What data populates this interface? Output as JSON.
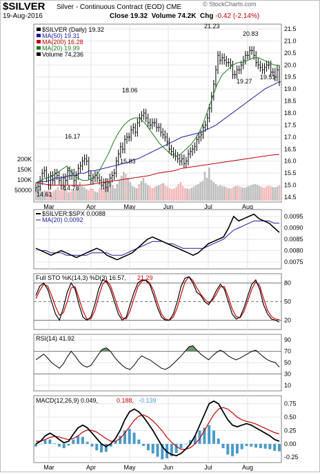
{
  "header": {
    "symbol": "$SILVER",
    "description": "Silver - Continuous Contract (EOD)",
    "exchange": "CME",
    "date": "19-Aug-2016",
    "close_label": "Close",
    "close": "19.32",
    "volume_label": "Volume",
    "volume": "74.2K",
    "chg_label": "Chg",
    "chg": "-0.42 (-2.14%)",
    "watermark": "© StockCharts.com"
  },
  "colors": {
    "up": "#000000",
    "ma50": "#1a1a9c",
    "ma200": "#c00000",
    "ma20": "#1a7a1a",
    "vol_up": "#bdbdbd",
    "vol_down": "#f2b8b8",
    "sto_k": "#000000",
    "sto_d": "#d00000",
    "rsi_fill": "#4a7a4a",
    "macd_hist": "#4a9ac9"
  },
  "chart_data": [
    {
      "type": "candlestick",
      "panel": "price",
      "legend": [
        {
          "label": "$SILVER (Daily) 19.32"
        },
        {
          "label": "MA(50) 19.31"
        },
        {
          "label": "MA(200) 16.28"
        },
        {
          "label": "MA(20) 19.99"
        },
        {
          "label": "Volume 74,236"
        }
      ],
      "x_ticks": [
        "Mar",
        "Apr",
        "May",
        "Jun",
        "Jul",
        "Aug"
      ],
      "y_ticks": [
        14.5,
        15.0,
        15.5,
        16.0,
        16.5,
        17.0,
        17.5,
        18.0,
        18.5,
        19.0,
        19.5,
        20.0,
        20.5,
        21.0,
        21.5
      ],
      "ylim": [
        14.3,
        21.7
      ],
      "volume_ticks": [
        "200K",
        "150K",
        "100K",
        "50000"
      ],
      "annotations": [
        "14.61",
        "16.17",
        "14.78",
        "18.06",
        "15.83",
        "21.23",
        "20.83",
        "19.27",
        "19.51"
      ],
      "price_closes": [
        14.9,
        14.95,
        15.2,
        15.5,
        15.6,
        15.3,
        15.0,
        15.4,
        15.2,
        15.5,
        15.4,
        15.2,
        15.0,
        15.3,
        15.2,
        15.6,
        15.4,
        15.5,
        15.2,
        15.4,
        15.7,
        15.8,
        16.0,
        16.1,
        16.0,
        15.4,
        15.2,
        15.3,
        15.4,
        15.3,
        15.2,
        15.0,
        15.1,
        14.9,
        15.1,
        15.3,
        15.4,
        15.5,
        16.0,
        16.3,
        16.6,
        16.5,
        16.9,
        17.0,
        17.0,
        17.3,
        17.4,
        17.2,
        17.6,
        17.8,
        17.9,
        18.0,
        17.8,
        17.6,
        17.5,
        17.6,
        17.6,
        17.4,
        17.4,
        17.2,
        17.1,
        17.0,
        16.8,
        16.5,
        16.4,
        16.3,
        16.2,
        16.1,
        16.0,
        16.1,
        15.9,
        16.0,
        16.3,
        16.4,
        16.5,
        16.6,
        16.9,
        17.0,
        17.1,
        17.4,
        17.5,
        17.8,
        18.2,
        18.7,
        19.2,
        19.8,
        20.4,
        20.2,
        20.3,
        20.2,
        20.1,
        20.1,
        20.0,
        19.6,
        19.6,
        19.8,
        19.8,
        20.0,
        20.2,
        20.4,
        20.4,
        20.6,
        20.6,
        20.4,
        20.1,
        20.0,
        19.9,
        19.8,
        19.9,
        20.0,
        20.0,
        19.7,
        19.7,
        19.5,
        19.8,
        19.3
      ],
      "ma50": [
        15.1,
        15.15,
        15.15,
        15.2,
        15.3,
        15.3,
        15.35,
        15.4,
        15.4,
        15.5,
        15.5,
        15.6,
        15.6,
        15.65,
        15.7,
        15.75,
        15.8,
        15.85,
        15.9,
        15.95,
        16.05,
        16.1,
        16.2,
        16.3,
        16.4,
        16.5,
        16.6,
        16.7,
        16.8,
        16.9,
        17.0,
        17.05,
        17.1,
        17.15,
        17.2,
        17.3,
        17.4,
        17.5,
        17.65,
        17.8,
        17.95,
        18.1,
        18.25,
        18.4,
        18.55,
        18.7,
        18.85,
        19.0,
        19.1,
        19.2,
        19.3
      ],
      "ma200": [
        15.1,
        15.05,
        15.0,
        15.0,
        15.0,
        15.0,
        15.0,
        15.05,
        15.1,
        15.15,
        15.2,
        15.25,
        15.3,
        15.35,
        15.4,
        15.5,
        15.55,
        15.6,
        15.7,
        15.75,
        15.8,
        15.85,
        15.9,
        15.95,
        16.0,
        16.05,
        16.1,
        16.15,
        16.2,
        16.25,
        16.28
      ],
      "ma20": [
        15.1,
        15.2,
        15.3,
        15.35,
        15.5,
        15.65,
        15.8,
        15.5,
        15.3,
        15.2,
        15.2,
        15.3,
        15.5,
        15.9,
        16.3,
        16.8,
        17.2,
        17.5,
        17.7,
        17.8,
        17.8,
        17.6,
        17.3,
        17.0,
        16.7,
        16.5,
        16.3,
        16.2,
        16.3,
        16.5,
        16.7,
        17.0,
        17.4,
        18.0,
        18.6,
        19.2,
        19.6,
        19.8,
        20.0,
        20.1,
        20.1,
        20.2,
        20.3,
        20.3,
        20.2,
        20.1,
        20.0,
        19.99
      ],
      "volume_K": [
        62,
        55,
        70,
        45,
        50,
        48,
        60,
        40,
        46,
        52,
        66,
        50,
        58,
        75,
        48,
        40,
        45,
        55,
        50,
        60,
        90,
        70,
        65,
        55,
        50,
        60,
        58,
        45,
        40,
        60,
        55,
        65,
        110,
        70,
        90,
        75,
        60,
        80,
        100,
        120,
        140,
        130,
        110,
        90,
        70,
        65,
        60,
        80,
        95,
        110,
        85,
        75,
        70,
        60,
        65,
        70,
        75,
        80,
        85,
        72,
        68,
        60,
        55,
        58,
        66,
        80,
        90,
        70,
        60,
        58,
        56,
        62,
        68,
        74,
        80,
        90,
        95,
        140,
        110,
        160,
        100,
        90,
        80,
        70,
        75,
        70,
        68,
        64,
        60,
        58,
        66,
        70,
        72,
        68,
        64,
        62,
        66,
        70,
        74,
        78,
        80,
        76,
        70,
        66,
        62,
        68,
        72,
        70,
        66,
        64,
        68,
        74
      ]
    },
    {
      "type": "line",
      "panel": "ratio",
      "legend": [
        {
          "label": "$SILVER:$SPX 0.0088"
        },
        {
          "label": "MA(20) 0.0092"
        }
      ],
      "y_ticks": [
        0.0075,
        0.008,
        0.0085,
        0.009,
        0.0095
      ],
      "ylim": [
        0.0072,
        0.0098
      ],
      "series": [
        {
          "values": [
            0.0081,
            0.008,
            0.0079,
            0.0078,
            0.0079,
            0.008,
            0.0079,
            0.0078,
            0.0077,
            0.0078,
            0.0079,
            0.008,
            0.0081,
            0.008,
            0.0078,
            0.0077,
            0.0076,
            0.0077,
            0.0078,
            0.0079,
            0.0081,
            0.0083,
            0.0085,
            0.0086,
            0.0085,
            0.0084,
            0.0083,
            0.0082,
            0.0081,
            0.008,
            0.0079,
            0.0078,
            0.0079,
            0.0081,
            0.0083,
            0.0084,
            0.0085,
            0.0086,
            0.009,
            0.0095,
            0.0093,
            0.0094,
            0.0095,
            0.0096,
            0.0094,
            0.0093,
            0.0092,
            0.009,
            0.0088
          ]
        },
        {
          "values": [
            0.0081,
            0.008,
            0.008,
            0.0079,
            0.0079,
            0.0079,
            0.0078,
            0.0078,
            0.0078,
            0.0078,
            0.0078,
            0.0079,
            0.0079,
            0.0079,
            0.0079,
            0.0078,
            0.0078,
            0.0078,
            0.0079,
            0.008,
            0.0081,
            0.0082,
            0.0083,
            0.0084,
            0.0084,
            0.0084,
            0.0083,
            0.0083,
            0.0082,
            0.0081,
            0.0081,
            0.0081,
            0.0081,
            0.0081,
            0.0082,
            0.0083,
            0.0084,
            0.0085,
            0.0087,
            0.0089,
            0.009,
            0.0091,
            0.0092,
            0.0093,
            0.0093,
            0.0093,
            0.0093,
            0.0092,
            0.0092
          ]
        }
      ]
    },
    {
      "type": "line",
      "panel": "stochastic",
      "legend": [
        {
          "label": "Full STO %K(14,3) %D(3) 16.57,"
        },
        {
          "label": "21.29"
        }
      ],
      "y_ticks": [
        20,
        50,
        80
      ],
      "ylim": [
        5,
        95
      ],
      "series": [
        {
          "values": [
            60,
            75,
            80,
            70,
            50,
            30,
            20,
            40,
            65,
            80,
            70,
            45,
            25,
            20,
            25,
            45,
            70,
            85,
            82,
            70,
            50,
            30,
            20,
            25,
            45,
            65,
            80,
            85,
            84,
            78,
            60,
            40,
            25,
            20,
            20,
            30,
            50,
            75,
            88,
            90,
            80,
            65,
            60,
            50,
            45,
            55,
            68,
            78,
            70,
            50,
            30,
            22,
            25,
            40,
            60,
            78,
            85,
            70,
            45,
            30,
            22,
            20,
            17
          ]
        },
        {
          "values": [
            55,
            68,
            78,
            75,
            60,
            42,
            28,
            32,
            50,
            72,
            74,
            55,
            35,
            22,
            22,
            35,
            58,
            78,
            84,
            76,
            58,
            38,
            24,
            22,
            35,
            55,
            74,
            83,
            85,
            80,
            68,
            48,
            30,
            22,
            20,
            25,
            40,
            62,
            82,
            90,
            84,
            72,
            62,
            54,
            48,
            52,
            62,
            74,
            74,
            58,
            38,
            26,
            24,
            34,
            52,
            70,
            82,
            76,
            55,
            36,
            26,
            22,
            21
          ]
        }
      ]
    },
    {
      "type": "line",
      "panel": "rsi",
      "legend": [
        {
          "label": "RSI(14) 41.92"
        }
      ],
      "y_ticks": [
        10,
        30,
        50,
        70,
        90
      ],
      "ylim": [
        0,
        100
      ],
      "series": [
        {
          "values": [
            55,
            60,
            65,
            58,
            50,
            45,
            40,
            48,
            60,
            70,
            62,
            52,
            45,
            42,
            45,
            55,
            65,
            74,
            76,
            70,
            60,
            52,
            45,
            40,
            38,
            45,
            55,
            62,
            58,
            55,
            50,
            45,
            40,
            38,
            42,
            48,
            55,
            62,
            70,
            78,
            80,
            72,
            65,
            60,
            55,
            62,
            68,
            72,
            68,
            62,
            58,
            55,
            58,
            62,
            66,
            70,
            72,
            66,
            60,
            55,
            52,
            50,
            42
          ]
        }
      ]
    },
    {
      "type": "line",
      "panel": "macd",
      "legend": [
        {
          "label": "MACD(12,26,9) 0.049,"
        },
        {
          "label": "0.188,"
        },
        {
          "label": "-0.139"
        }
      ],
      "y_ticks": [
        -0.25,
        0.0,
        0.25,
        0.5,
        0.75
      ],
      "ylim": [
        -0.35,
        0.9
      ],
      "series": [
        {
          "values": [
            0.0,
            0.05,
            0.15,
            0.2,
            0.15,
            0.08,
            0.02,
            0.05,
            0.18,
            0.3,
            0.35,
            0.3,
            0.2,
            0.1,
            0.0,
            -0.05,
            0.0,
            0.1,
            0.25,
            0.45,
            0.6,
            0.65,
            0.6,
            0.5,
            0.38,
            0.25,
            0.1,
            -0.05,
            -0.15,
            -0.2,
            -0.22,
            -0.18,
            -0.1,
            0.0,
            0.15,
            0.35,
            0.55,
            0.75,
            0.8,
            0.75,
            0.6,
            0.45,
            0.35,
            0.32,
            0.35,
            0.38,
            0.35,
            0.3,
            0.25,
            0.2,
            0.15,
            0.08,
            0.05
          ]
        },
        {
          "values": [
            0.05,
            0.05,
            0.08,
            0.12,
            0.14,
            0.13,
            0.1,
            0.08,
            0.1,
            0.15,
            0.22,
            0.26,
            0.25,
            0.22,
            0.16,
            0.1,
            0.05,
            0.05,
            0.1,
            0.2,
            0.32,
            0.44,
            0.52,
            0.54,
            0.5,
            0.43,
            0.34,
            0.24,
            0.12,
            0.03,
            -0.05,
            -0.1,
            -0.1,
            -0.07,
            0.0,
            0.1,
            0.25,
            0.4,
            0.55,
            0.65,
            0.68,
            0.65,
            0.58,
            0.5,
            0.45,
            0.42,
            0.4,
            0.37,
            0.33,
            0.29,
            0.25,
            0.21,
            0.188
          ]
        }
      ],
      "histogram": [
        -0.05,
        0.0,
        0.07,
        0.08,
        0.01,
        -0.05,
        -0.08,
        -0.03,
        0.08,
        0.15,
        0.13,
        0.04,
        -0.05,
        -0.12,
        -0.16,
        -0.15,
        -0.05,
        0.05,
        0.15,
        0.25,
        0.28,
        0.21,
        0.08,
        -0.04,
        -0.12,
        -0.18,
        -0.24,
        -0.29,
        -0.27,
        -0.23,
        -0.17,
        -0.08,
        0.0,
        0.07,
        0.15,
        0.25,
        0.3,
        0.35,
        0.25,
        0.1,
        -0.08,
        -0.2,
        -0.23,
        -0.18,
        -0.1,
        -0.04,
        -0.05,
        -0.07,
        -0.08,
        -0.09,
        -0.1,
        -0.13,
        -0.139
      ]
    }
  ]
}
